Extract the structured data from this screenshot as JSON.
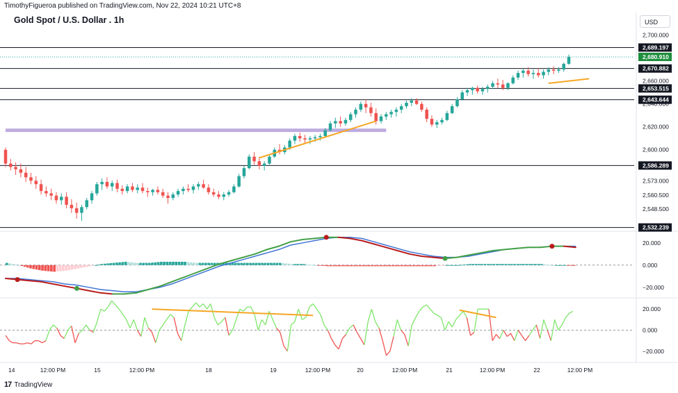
{
  "header": {
    "publisher": "TimothyFigueroa published on TradingView.com, Nov 22, 2024 10:21 UTC+8",
    "title": "Gold Spot / U.S. Dollar . 1h",
    "currency": "USD"
  },
  "footer": {
    "brand": "TradingView"
  },
  "colors": {
    "up": "#26a69a",
    "down": "#ef5350",
    "band": "#b39ddb",
    "trend": "#f5a623",
    "macd": "#43a047",
    "signal": "#3f74d6",
    "signal_down": "#b71c1c",
    "osc": "#7ee66a"
  },
  "chart_data": [
    {
      "type": "candlestick",
      "title": "Gold Spot / U.S. Dollar . 1h",
      "x_labels": [
        "14",
        "12:00 PM",
        "15",
        "12:00 PM",
        "18",
        "19",
        "12:00 PM",
        "20",
        "12:00 PM",
        "21",
        "12:00 PM",
        "22",
        "12:00 PM"
      ],
      "y_ticks": [
        "2,700.000",
        "2,660.000",
        "2,640.000",
        "2,620.000",
        "2,600.000",
        "2,573.000",
        "2,560.500",
        "2,548.500"
      ],
      "ylim": [
        2532,
        2704
      ],
      "current_price": "2,680.910",
      "horizontal_levels": [
        {
          "label": "2,689.197",
          "value": 2689.197
        },
        {
          "label": "2,670.882",
          "value": 2670.882
        },
        {
          "label": "2,653.515",
          "value": 2653.515
        },
        {
          "label": "2,643.644",
          "value": 2643.644
        },
        {
          "label": "2,586.289",
          "value": 2586.289
        },
        {
          "label": "2,532.239",
          "value": 2532.239
        }
      ],
      "zone": {
        "from_x": 0,
        "to_x": 75,
        "low": 2615.5,
        "high": 2618.5
      },
      "trendlines": [
        {
          "x": [
            50,
            73
          ],
          "y": [
            2593,
            2625
          ]
        },
        {
          "x": [
            107,
            115
          ],
          "y": [
            2658,
            2662
          ]
        }
      ],
      "candles": [
        [
          2600,
          2602,
          2585,
          2588
        ],
        [
          2588,
          2592,
          2582,
          2585
        ],
        [
          2585,
          2589,
          2578,
          2583
        ],
        [
          2583,
          2588,
          2576,
          2580
        ],
        [
          2580,
          2585,
          2572,
          2576
        ],
        [
          2576,
          2580,
          2570,
          2573
        ],
        [
          2573,
          2577,
          2566,
          2570
        ],
        [
          2570,
          2574,
          2561,
          2564
        ],
        [
          2564,
          2568,
          2559,
          2562
        ],
        [
          2562,
          2566,
          2556,
          2560
        ],
        [
          2560,
          2563,
          2553,
          2556
        ],
        [
          2556,
          2562,
          2552,
          2559
        ],
        [
          2559,
          2563,
          2549,
          2552
        ],
        [
          2552,
          2557,
          2545,
          2549
        ],
        [
          2549,
          2554,
          2540,
          2545
        ],
        [
          2545,
          2552,
          2538,
          2550
        ],
        [
          2550,
          2558,
          2548,
          2556
        ],
        [
          2556,
          2564,
          2553,
          2562
        ],
        [
          2562,
          2572,
          2560,
          2570
        ],
        [
          2570,
          2575,
          2565,
          2572
        ],
        [
          2572,
          2576,
          2566,
          2568
        ],
        [
          2568,
          2573,
          2564,
          2571
        ],
        [
          2571,
          2574,
          2563,
          2566
        ],
        [
          2566,
          2569,
          2561,
          2564
        ],
        [
          2564,
          2570,
          2562,
          2568
        ],
        [
          2568,
          2571,
          2563,
          2565
        ],
        [
          2565,
          2570,
          2562,
          2567
        ],
        [
          2567,
          2571,
          2562,
          2564
        ],
        [
          2564,
          2567,
          2559,
          2563
        ],
        [
          2563,
          2566,
          2560,
          2565
        ],
        [
          2565,
          2568,
          2561,
          2563
        ],
        [
          2563,
          2566,
          2558,
          2560
        ],
        [
          2560,
          2563,
          2553,
          2558
        ],
        [
          2558,
          2563,
          2556,
          2561
        ],
        [
          2561,
          2566,
          2559,
          2564
        ],
        [
          2564,
          2568,
          2561,
          2566
        ],
        [
          2566,
          2570,
          2563,
          2565
        ],
        [
          2565,
          2570,
          2562,
          2568
        ],
        [
          2568,
          2572,
          2565,
          2570
        ],
        [
          2570,
          2574,
          2566,
          2567
        ],
        [
          2567,
          2570,
          2561,
          2563
        ],
        [
          2563,
          2566,
          2559,
          2561
        ],
        [
          2561,
          2564,
          2557,
          2559
        ],
        [
          2559,
          2563,
          2556,
          2561
        ],
        [
          2561,
          2565,
          2559,
          2563
        ],
        [
          2563,
          2570,
          2562,
          2568
        ],
        [
          2568,
          2579,
          2567,
          2577
        ],
        [
          2577,
          2586,
          2575,
          2584
        ],
        [
          2584,
          2596,
          2583,
          2594
        ],
        [
          2594,
          2598,
          2587,
          2590
        ],
        [
          2590,
          2594,
          2583,
          2586
        ],
        [
          2586,
          2590,
          2582,
          2588
        ],
        [
          2588,
          2596,
          2587,
          2594
        ],
        [
          2594,
          2602,
          2593,
          2600
        ],
        [
          2600,
          2605,
          2596,
          2598
        ],
        [
          2598,
          2604,
          2596,
          2602
        ],
        [
          2602,
          2610,
          2600,
          2608
        ],
        [
          2608,
          2614,
          2605,
          2612
        ],
        [
          2612,
          2615,
          2607,
          2610
        ],
        [
          2610,
          2613,
          2606,
          2609
        ],
        [
          2609,
          2612,
          2605,
          2610
        ],
        [
          2610,
          2613,
          2607,
          2611
        ],
        [
          2611,
          2614,
          2608,
          2612
        ],
        [
          2612,
          2619,
          2611,
          2617
        ],
        [
          2617,
          2625,
          2616,
          2623
        ],
        [
          2623,
          2628,
          2619,
          2625
        ],
        [
          2625,
          2629,
          2620,
          2623
        ],
        [
          2623,
          2628,
          2621,
          2626
        ],
        [
          2626,
          2633,
          2624,
          2631
        ],
        [
          2631,
          2637,
          2628,
          2635
        ],
        [
          2635,
          2642,
          2633,
          2640
        ],
        [
          2640,
          2644,
          2632,
          2637
        ],
        [
          2637,
          2641,
          2629,
          2632
        ],
        [
          2632,
          2636,
          2622,
          2625
        ],
        [
          2625,
          2631,
          2623,
          2629
        ],
        [
          2629,
          2633,
          2626,
          2631
        ],
        [
          2631,
          2635,
          2628,
          2633
        ],
        [
          2633,
          2637,
          2629,
          2635
        ],
        [
          2635,
          2640,
          2632,
          2638
        ],
        [
          2638,
          2643,
          2636,
          2641
        ],
        [
          2641,
          2645,
          2638,
          2643
        ],
        [
          2643,
          2645,
          2639,
          2640
        ],
        [
          2640,
          2642,
          2633,
          2635
        ],
        [
          2635,
          2637,
          2624,
          2627
        ],
        [
          2627,
          2630,
          2620,
          2622
        ],
        [
          2622,
          2626,
          2619,
          2624
        ],
        [
          2624,
          2628,
          2622,
          2626
        ],
        [
          2626,
          2634,
          2625,
          2632
        ],
        [
          2632,
          2640,
          2631,
          2638
        ],
        [
          2638,
          2646,
          2637,
          2644
        ],
        [
          2644,
          2652,
          2643,
          2650
        ],
        [
          2650,
          2654,
          2647,
          2652
        ],
        [
          2652,
          2655,
          2648,
          2654
        ],
        [
          2654,
          2656,
          2649,
          2651
        ],
        [
          2651,
          2655,
          2648,
          2653
        ],
        [
          2653,
          2657,
          2650,
          2655
        ],
        [
          2655,
          2660,
          2653,
          2658
        ],
        [
          2658,
          2662,
          2654,
          2657
        ],
        [
          2657,
          2661,
          2652,
          2654
        ],
        [
          2654,
          2659,
          2652,
          2658
        ],
        [
          2658,
          2665,
          2657,
          2663
        ],
        [
          2663,
          2669,
          2661,
          2667
        ],
        [
          2667,
          2671,
          2663,
          2669
        ],
        [
          2669,
          2672,
          2664,
          2666
        ],
        [
          2666,
          2670,
          2662,
          2667
        ],
        [
          2667,
          2671,
          2663,
          2665
        ],
        [
          2665,
          2670,
          2662,
          2668
        ],
        [
          2668,
          2672,
          2665,
          2670
        ],
        [
          2670,
          2673,
          2666,
          2669
        ],
        [
          2669,
          2672,
          2667,
          2670
        ],
        [
          2670,
          2676,
          2668,
          2675
        ],
        [
          2675,
          2683,
          2674,
          2681
        ]
      ]
    },
    {
      "type": "line",
      "title": "",
      "y_ticks": [
        "20.000",
        "0.000",
        "−20.000"
      ],
      "ylim": [
        -27,
        28
      ],
      "series": [
        {
          "values": [
            -12,
            -13,
            -14,
            -15,
            -17,
            -19,
            -21,
            -23,
            -25,
            -26,
            -26,
            -25,
            -22,
            -19,
            -15,
            -11,
            -7,
            -3,
            1,
            4,
            7,
            10,
            14,
            17,
            21,
            23,
            24,
            25,
            25,
            24,
            22,
            19,
            16,
            13,
            10,
            8,
            7,
            6,
            7,
            9,
            11,
            13,
            14,
            15,
            16,
            16,
            17,
            17,
            16
          ]
        },
        {
          "values": [
            -12,
            -12,
            -13,
            -14,
            -15,
            -17,
            -18,
            -20,
            -22,
            -23,
            -24,
            -24,
            -22,
            -20,
            -17,
            -13,
            -9,
            -5,
            -1,
            2,
            5,
            8,
            11,
            14,
            18,
            20,
            22,
            24,
            25,
            25,
            24,
            21,
            18,
            15,
            12,
            10,
            8,
            7,
            7,
            8,
            10,
            12,
            14,
            15,
            16,
            16,
            17,
            17,
            17
          ]
        },
        {
          "values": [
            2,
            0,
            -3,
            -5,
            -6,
            -5,
            -3,
            -1,
            1,
            2,
            3,
            2,
            2,
            3,
            3,
            3,
            2,
            2,
            2,
            2,
            2,
            2,
            2,
            2,
            1,
            1,
            0,
            -1,
            -1,
            -1,
            -1,
            -1,
            -1,
            -1,
            -1,
            -1,
            -1,
            0,
            0,
            1,
            1,
            1,
            1,
            1,
            1,
            1,
            0,
            0,
            -1
          ]
        }
      ]
    },
    {
      "type": "line",
      "title": "",
      "y_ticks": [
        "20.000",
        "0.000",
        "−20.000"
      ],
      "ylim": [
        -28,
        28
      ],
      "series": [
        {
          "values": [
            -5,
            -10,
            -12,
            -12,
            -13,
            -13,
            -12,
            -13,
            -10,
            -10,
            -12,
            -10,
            0,
            5,
            2,
            -5,
            -8,
            0,
            4,
            -12,
            -3,
            0,
            5,
            0,
            -2,
            8,
            20,
            18,
            22,
            28,
            24,
            20,
            15,
            10,
            2,
            10,
            0,
            -6,
            12,
            2,
            -2,
            -12,
            0,
            5,
            10,
            15,
            12,
            -3,
            -10,
            5,
            18,
            22,
            26,
            22,
            25,
            20,
            25,
            12,
            5,
            8,
            12,
            -5,
            0,
            10,
            20,
            18,
            22,
            22,
            15,
            0,
            10,
            5,
            18,
            10,
            2,
            -2,
            -15,
            -20,
            5,
            8,
            20,
            10,
            12,
            22,
            25,
            20,
            15,
            5,
            0,
            -8,
            -14,
            -18,
            -8,
            -4,
            2,
            5,
            -2,
            -8,
            -14,
            8,
            20,
            8,
            2,
            -10,
            -24,
            -20,
            -6,
            10,
            0,
            -4,
            -15,
            5,
            12,
            18,
            22,
            24,
            20,
            16,
            14,
            12,
            0,
            8,
            3,
            10,
            14,
            18,
            12,
            -5,
            -2,
            20,
            20,
            20,
            20,
            -10,
            -4,
            -8,
            0,
            -6,
            -3,
            -10,
            0,
            -5,
            -10,
            -5,
            0,
            5,
            -8,
            10,
            0,
            -10,
            10,
            0,
            5,
            12,
            16,
            18
          ]
        }
      ],
      "trendlines": [
        {
          "x": [
            40,
            84
          ],
          "y": [
            20,
            14
          ]
        },
        {
          "x": [
            124,
            134
          ],
          "y": [
            19,
            12
          ]
        }
      ]
    }
  ]
}
